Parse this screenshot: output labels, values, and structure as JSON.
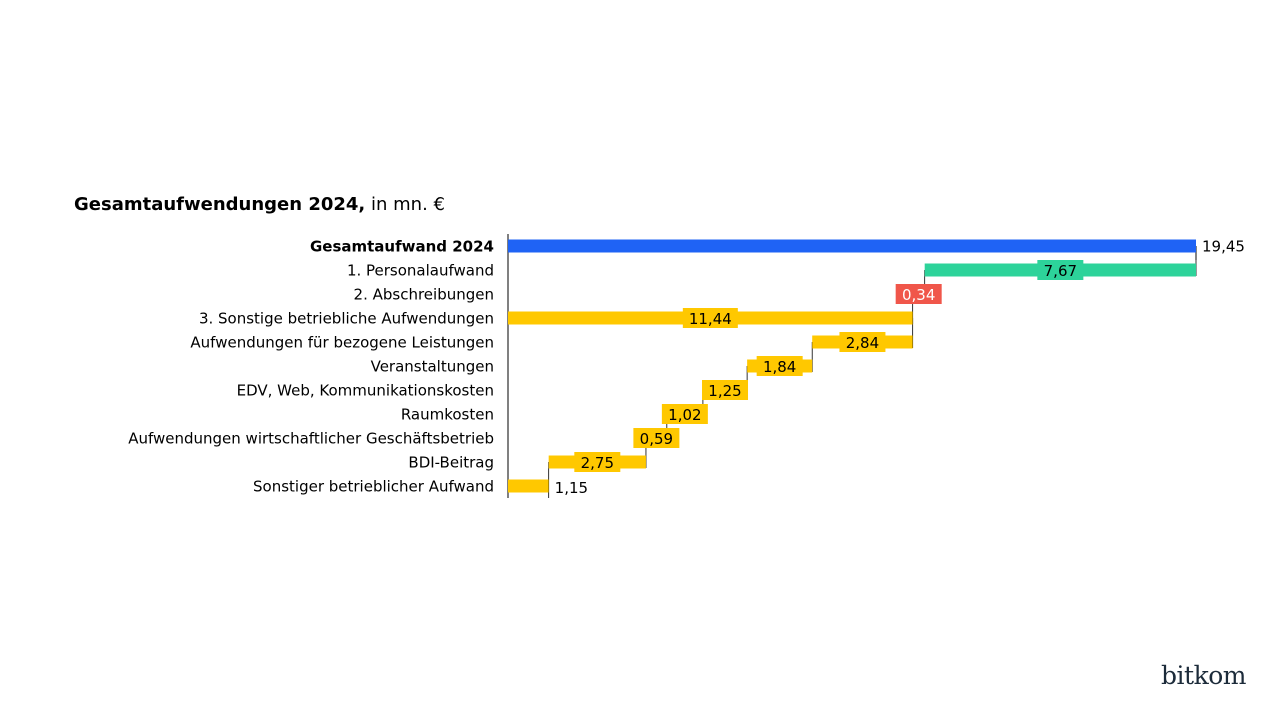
{
  "chart_data": {
    "type": "bar",
    "title": "Gesamtaufwendungen 2024,",
    "title_unit": "in mn. €",
    "xlim": [
      0,
      19.45
    ],
    "categories": [
      "Gesamtaufwand 2024",
      "1. Personalaufwand",
      "2. Abschreibungen",
      "3. Sonstige betriebliche Aufwendungen",
      "Aufwendungen für bezogene Leistungen",
      "Veranstaltungen",
      "EDV, Web, Kommunikationskosten",
      "Raumkosten",
      "Aufwendungen wirtschaftlicher Geschäftsbetrieb",
      "BDI-Beitrag",
      "Sonstiger betrieblicher Aufwand"
    ],
    "values": [
      19.45,
      7.67,
      0.34,
      11.44,
      2.84,
      1.84,
      1.25,
      1.02,
      0.59,
      2.75,
      1.15
    ],
    "value_labels": [
      "19,45",
      "7,67",
      "0,34",
      "11,44",
      "2,84",
      "1,84",
      "1,25",
      "1,02",
      "0,59",
      "2,75",
      "1,15"
    ],
    "bold_categories": [
      0
    ],
    "colors": {
      "total": "#1f63f5",
      "personal": "#2dd39a",
      "depreciation": "#f0564a",
      "other": "#ffc800"
    },
    "bar_kinds": [
      "total",
      "personal",
      "depreciation",
      "other",
      "other",
      "other",
      "other",
      "other",
      "other",
      "other",
      "other"
    ]
  },
  "brand": "bitkom"
}
